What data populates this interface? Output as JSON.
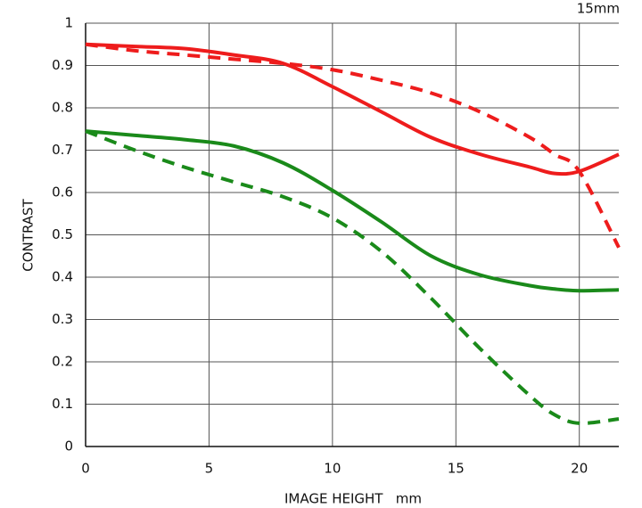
{
  "chart_data": {
    "type": "line",
    "annotation": "15mm",
    "y_label": "CONTRAST",
    "x_label": "IMAGE HEIGHT   mm",
    "x": [
      0,
      2,
      4,
      6,
      8,
      10,
      12,
      14,
      16,
      18,
      19,
      20,
      21.6
    ],
    "series": [
      {
        "color": "#ee1c1c",
        "dashed": false,
        "values": [
          0.95,
          0.945,
          0.94,
          0.925,
          0.905,
          0.85,
          0.79,
          0.73,
          0.69,
          0.66,
          0.645,
          0.65,
          0.69
        ]
      },
      {
        "color": "#ee1c1c",
        "dashed": true,
        "values": [
          0.95,
          0.935,
          0.925,
          0.915,
          0.905,
          0.89,
          0.865,
          0.835,
          0.79,
          0.73,
          0.69,
          0.65,
          0.47
        ]
      },
      {
        "color": "#1a8a1a",
        "dashed": false,
        "values": [
          0.745,
          0.735,
          0.725,
          0.71,
          0.67,
          0.605,
          0.53,
          0.45,
          0.405,
          0.38,
          0.372,
          0.368,
          0.37
        ]
      },
      {
        "color": "#1a8a1a",
        "dashed": true,
        "values": [
          0.745,
          0.7,
          0.66,
          0.625,
          0.59,
          0.54,
          0.46,
          0.35,
          0.23,
          0.12,
          0.075,
          0.055,
          0.065
        ]
      }
    ],
    "xlim": [
      0,
      21.6
    ],
    "ylim": [
      0,
      1
    ],
    "xticks": [
      0,
      5,
      10,
      15,
      20
    ],
    "yticks": [
      0,
      0.1,
      0.2,
      0.3,
      0.4,
      0.5,
      0.6,
      0.7,
      0.8,
      0.9,
      1
    ],
    "grid": true
  }
}
